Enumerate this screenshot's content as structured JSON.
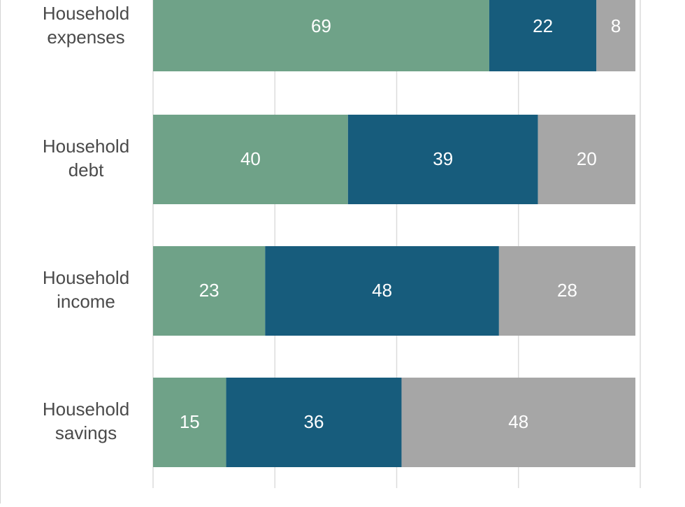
{
  "chart_data": {
    "type": "bar",
    "orientation": "horizontal",
    "stacked": true,
    "categories": [
      [
        "Household",
        "expenses"
      ],
      [
        "Household",
        "debt"
      ],
      [
        "Household",
        "income"
      ],
      [
        "Household",
        "savings"
      ]
    ],
    "series": [
      {
        "values": [
          69,
          40,
          23,
          15
        ],
        "color": "#6fa288"
      },
      {
        "values": [
          22,
          39,
          48,
          36
        ],
        "color": "#175c7c"
      },
      {
        "values": [
          8,
          20,
          28,
          48
        ],
        "color": "#a6a6a6"
      }
    ],
    "xlim": [
      0,
      100
    ],
    "gridlines_at": [
      0,
      25,
      50,
      75,
      100
    ],
    "grid": true,
    "legend": "none",
    "data_labels": true,
    "title": "",
    "xlabel": "",
    "ylabel": ""
  }
}
